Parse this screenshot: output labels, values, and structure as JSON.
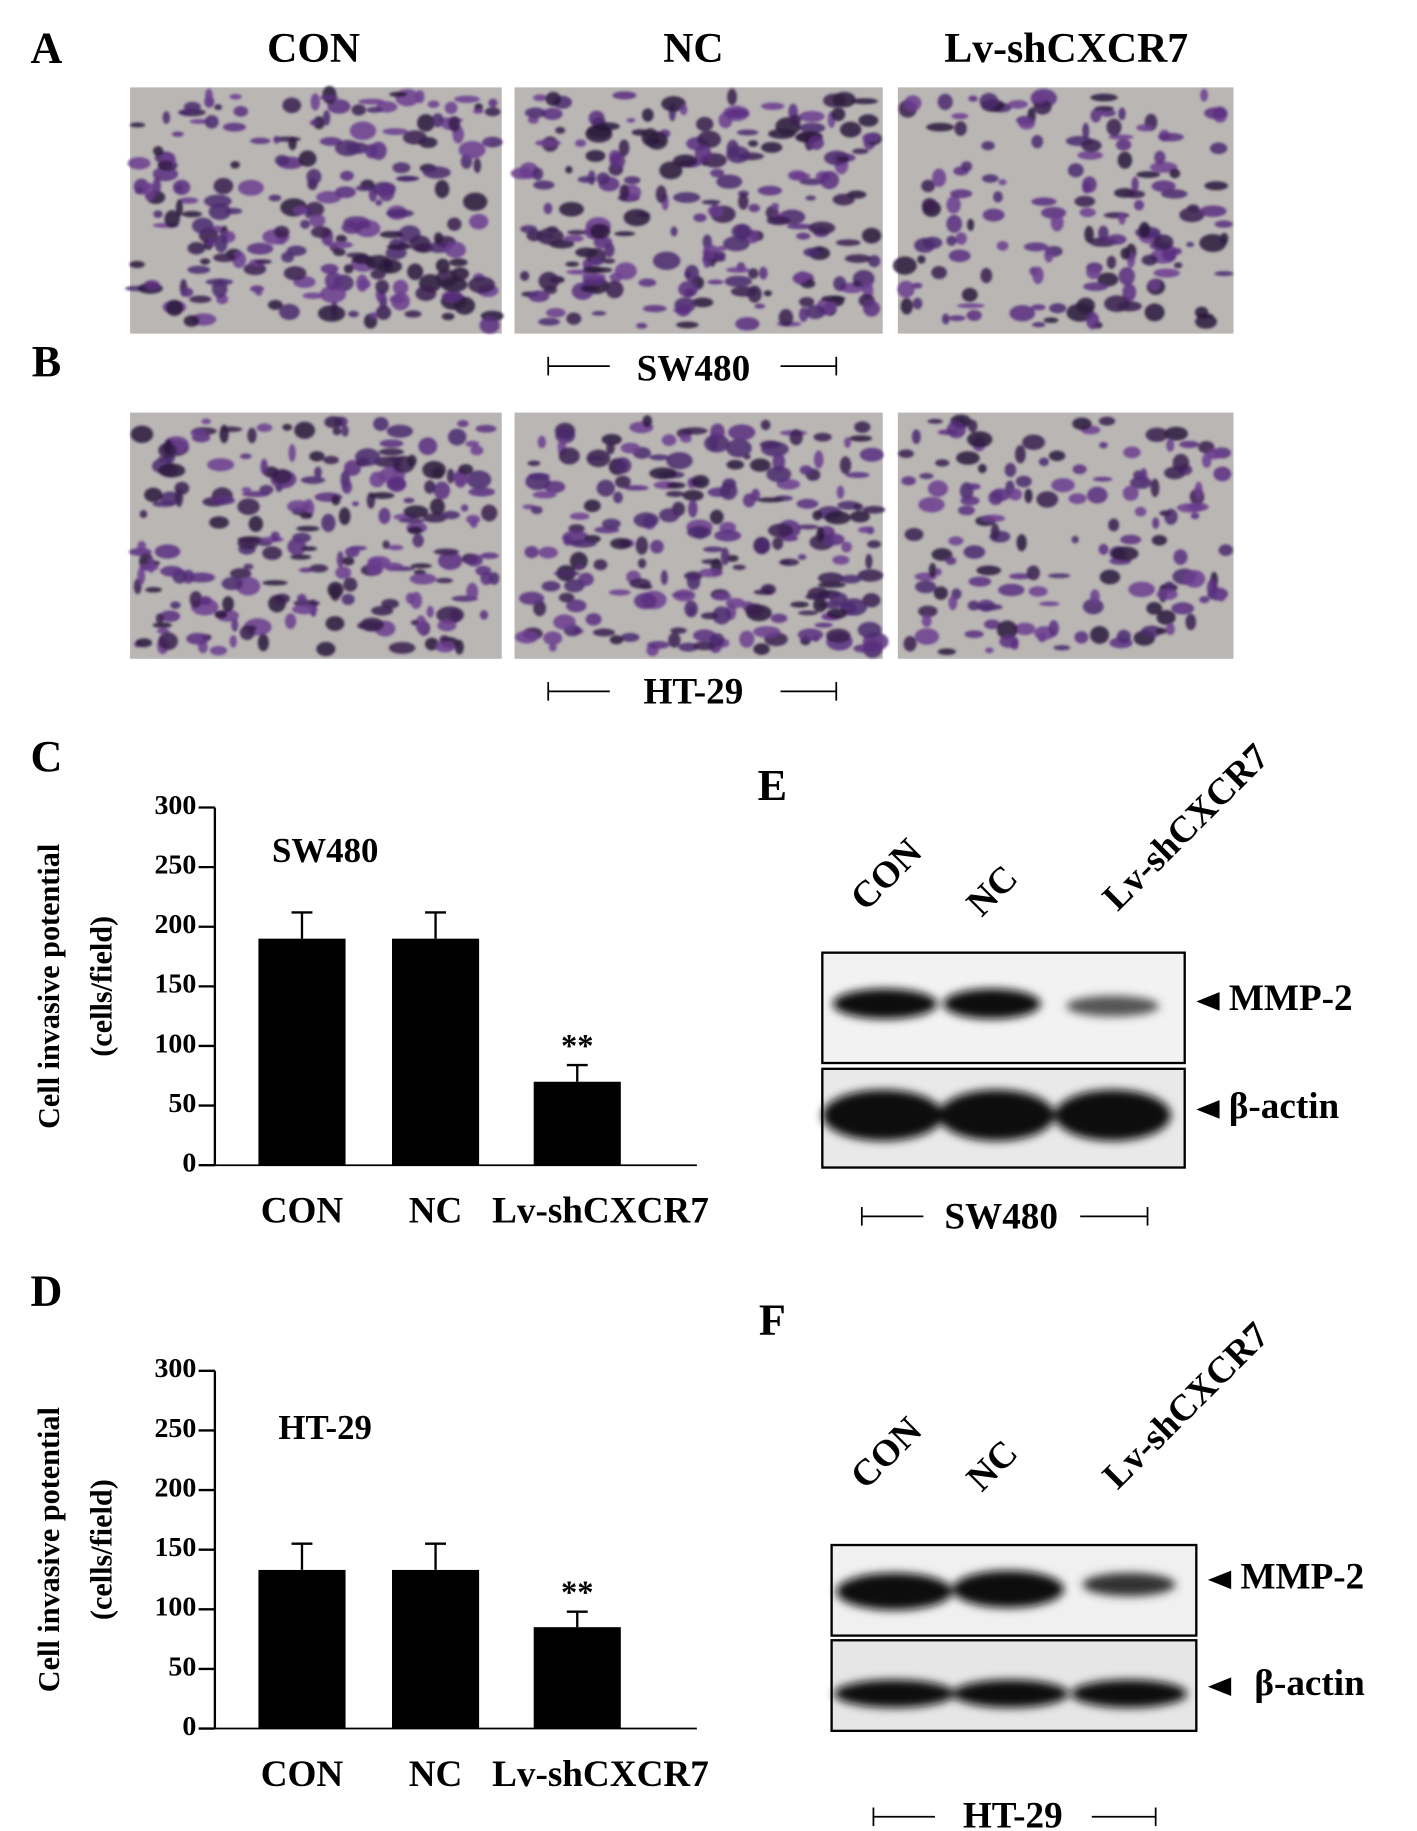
{
  "panel_labels": [
    "A",
    "B",
    "C",
    "D",
    "E",
    "F"
  ],
  "micrographs": {
    "column_labels": [
      "CON",
      "NC",
      "Lv-shCXCR7"
    ],
    "cell_lines": [
      "SW480",
      "HT-29"
    ]
  },
  "chart_data": [
    {
      "type": "bar",
      "title": "SW480",
      "ylabel_lines": [
        "Cell invasive potential",
        "(cells/field)"
      ],
      "categories": [
        "CON",
        "NC",
        "Lv-shCXCR7"
      ],
      "values": [
        190,
        190,
        70
      ],
      "errors": [
        22,
        22,
        14
      ],
      "annotations": [
        {
          "category": "Lv-shCXCR7",
          "text": "**"
        }
      ],
      "color": "#000000",
      "ylim": [
        0,
        300
      ],
      "yticks": [
        0,
        50,
        100,
        150,
        200,
        250,
        300
      ]
    },
    {
      "type": "bar",
      "title": "HT-29",
      "ylabel_lines": [
        "Cell invasive potential",
        "(cells/field)"
      ],
      "categories": [
        "CON",
        "NC",
        "Lv-shCXCR7"
      ],
      "values": [
        133,
        133,
        85
      ],
      "errors": [
        22,
        22,
        13
      ],
      "annotations": [
        {
          "category": "Lv-shCXCR7",
          "text": "**"
        }
      ],
      "color": "#000000",
      "ylim": [
        0,
        300
      ],
      "yticks": [
        0,
        50,
        100,
        150,
        200,
        250,
        300
      ]
    }
  ],
  "blots": [
    {
      "lanes": [
        "CON",
        "NC",
        "Lv-shCXCR7"
      ],
      "bands": [
        "MMP-2",
        "β-actin"
      ],
      "cell_line": "SW480"
    },
    {
      "lanes": [
        "CON",
        "NC",
        "Lv-shCXCR7"
      ],
      "bands": [
        "MMP-2",
        "β-actin"
      ],
      "cell_line": "HT-29"
    }
  ]
}
